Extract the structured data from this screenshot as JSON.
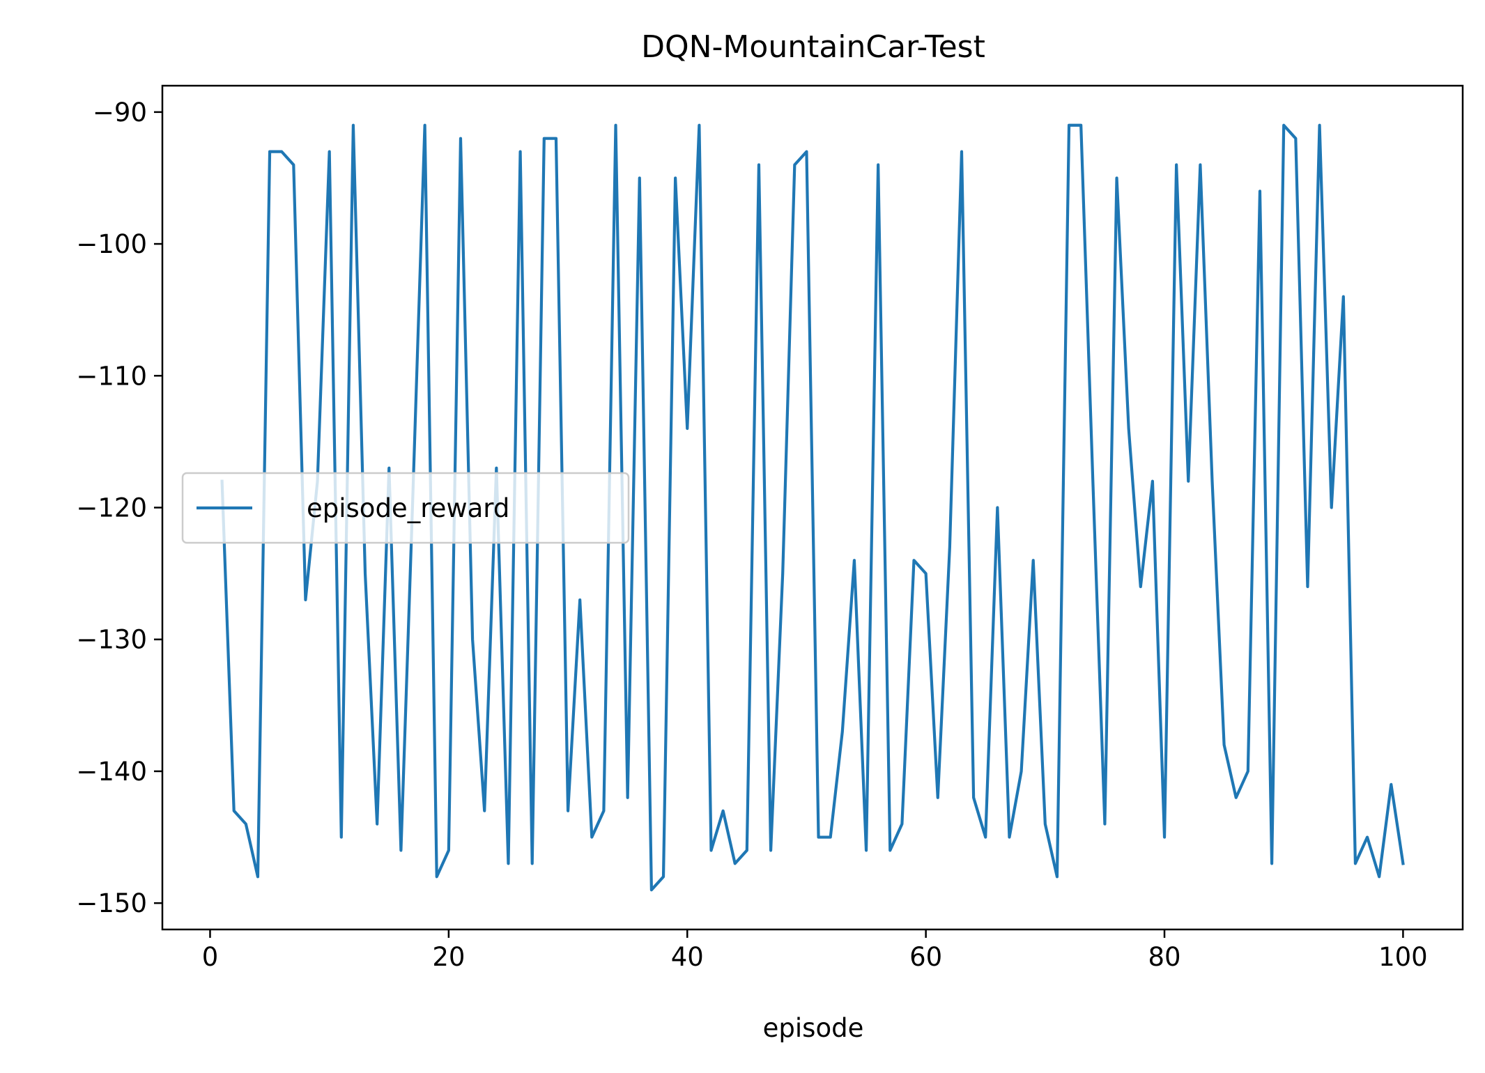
{
  "chart_data": {
    "type": "line",
    "title": "DQN-MountainCar-Test",
    "xlabel": "episode",
    "ylabel": "",
    "xlim": [
      -4,
      105
    ],
    "ylim": [
      -152,
      -88
    ],
    "xticks": [
      0,
      20,
      40,
      60,
      80,
      100
    ],
    "yticks": [
      -90,
      -100,
      -110,
      -120,
      -130,
      -140,
      -150
    ],
    "xtick_labels": [
      "0",
      "20",
      "40",
      "60",
      "80",
      "100"
    ],
    "ytick_labels": [
      "−90",
      "−100",
      "−110",
      "−120",
      "−130",
      "−140",
      "−150"
    ],
    "grid": false,
    "legend_position": "center-left",
    "series": [
      {
        "name": "episode_reward",
        "color": "#1f77b4",
        "x": [
          1,
          2,
          3,
          4,
          5,
          6,
          7,
          8,
          9,
          10,
          11,
          12,
          13,
          14,
          15,
          16,
          17,
          18,
          19,
          20,
          21,
          22,
          23,
          24,
          25,
          26,
          27,
          28,
          29,
          30,
          31,
          32,
          33,
          34,
          35,
          36,
          37,
          38,
          39,
          40,
          41,
          42,
          43,
          44,
          45,
          46,
          47,
          48,
          49,
          50,
          51,
          52,
          53,
          54,
          55,
          56,
          57,
          58,
          59,
          60,
          61,
          62,
          63,
          64,
          65,
          66,
          67,
          68,
          69,
          70,
          71,
          72,
          73,
          74,
          75,
          76,
          77,
          78,
          79,
          80,
          81,
          82,
          83,
          84,
          85,
          86,
          87,
          88,
          89,
          90,
          91,
          92,
          93,
          94,
          95,
          96,
          97,
          98,
          99,
          100
        ],
        "y": [
          -118,
          -143,
          -144,
          -148,
          -93,
          -93,
          -94,
          -127,
          -118,
          -93,
          -145,
          -91,
          -125,
          -144,
          -117,
          -146,
          -119,
          -91,
          -148,
          -146,
          -92,
          -130,
          -143,
          -117,
          -147,
          -93,
          -147,
          -92,
          -92,
          -143,
          -127,
          -145,
          -143,
          -91,
          -142,
          -95,
          -149,
          -148,
          -95,
          -114,
          -91,
          -146,
          -143,
          -147,
          -146,
          -94,
          -146,
          -125,
          -94,
          -93,
          -145,
          -145,
          -137,
          -124,
          -146,
          -94,
          -146,
          -144,
          -124,
          -125,
          -142,
          -123,
          -93,
          -142,
          -145,
          -120,
          -145,
          -140,
          -124,
          -144,
          -148,
          -91,
          -91,
          -118,
          -144,
          -95,
          -114,
          -126,
          -118,
          -145,
          -94,
          -118,
          -94,
          -118,
          -138,
          -142,
          -140,
          -96,
          -147,
          -91,
          -92,
          -126,
          -91,
          -120,
          -104,
          -147,
          -145,
          -148,
          -141,
          -147
        ]
      }
    ]
  }
}
